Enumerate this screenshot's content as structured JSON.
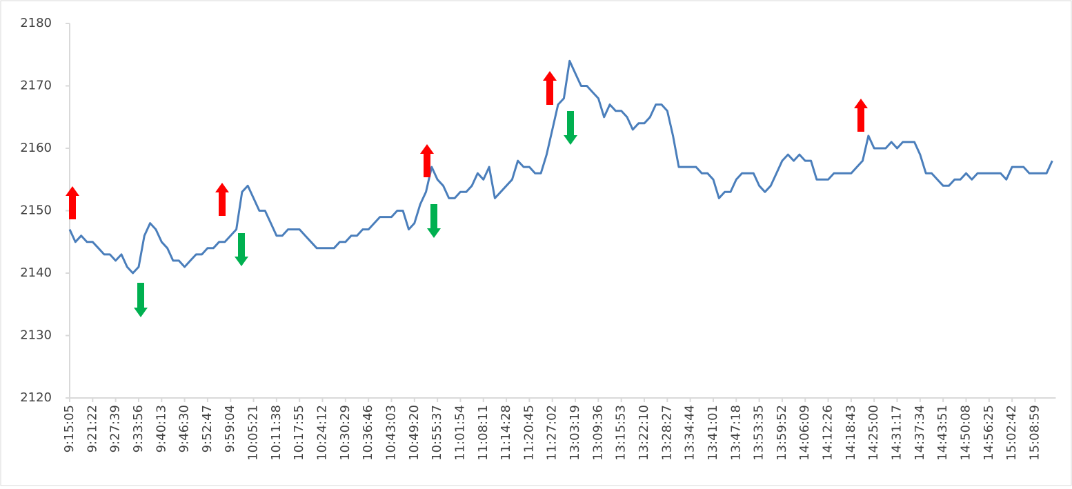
{
  "chart_data": {
    "type": "line",
    "categories": [
      "9:15:05",
      null,
      null,
      null,
      "9:21:22",
      null,
      null,
      null,
      "9:27:39",
      null,
      null,
      null,
      "9:33:56",
      null,
      null,
      null,
      "9:40:13",
      null,
      null,
      null,
      "9:46:30",
      null,
      null,
      null,
      "9:52:47",
      null,
      null,
      null,
      "9:59:04",
      null,
      null,
      null,
      "10:05:21",
      null,
      null,
      null,
      "10:11:38",
      null,
      null,
      null,
      "10:17:55",
      null,
      null,
      null,
      "10:24:12",
      null,
      null,
      null,
      "10:30:29",
      null,
      null,
      null,
      "10:36:46",
      null,
      null,
      null,
      "10:43:03",
      null,
      null,
      null,
      "10:49:20",
      null,
      null,
      null,
      "10:55:37",
      null,
      null,
      null,
      "11:01:54",
      null,
      null,
      null,
      "11:08:11",
      null,
      null,
      null,
      "11:14:28",
      null,
      null,
      null,
      "11:20:45",
      null,
      null,
      null,
      "11:27:02",
      null,
      null,
      null,
      "13:03:19",
      null,
      null,
      null,
      "13:09:36",
      null,
      null,
      null,
      "13:15:53",
      null,
      null,
      null,
      "13:22:10",
      null,
      null,
      null,
      "13:28:27",
      null,
      null,
      null,
      "13:34:44",
      null,
      null,
      null,
      "13:41:01",
      null,
      null,
      null,
      "13:47:18",
      null,
      null,
      null,
      "13:53:35",
      null,
      null,
      null,
      "13:59:52",
      null,
      null,
      null,
      "14:06:09",
      null,
      null,
      null,
      "14:12:26",
      null,
      null,
      null,
      "14:18:43",
      null,
      null,
      null,
      "14:25:00",
      null,
      null,
      null,
      "14:31:17",
      null,
      null,
      null,
      "14:37:34",
      null,
      null,
      null,
      "14:43:51",
      null,
      null,
      null,
      "14:50:08",
      null,
      null,
      null,
      "14:56:25",
      null,
      null,
      null,
      "15:02:42",
      null,
      null,
      null,
      "15:08:59",
      null,
      null,
      null
    ],
    "values": [
      2147,
      2145,
      2146,
      2145,
      2145,
      2144,
      2143,
      2143,
      2142,
      2143,
      2141,
      2140,
      2141,
      2146,
      2148,
      2147,
      2145,
      2144,
      2142,
      2142,
      2141,
      2142,
      2143,
      2143,
      2144,
      2144,
      2145,
      2145,
      2146,
      2147,
      2153,
      2154,
      2152,
      2150,
      2150,
      2148,
      2146,
      2146,
      2147,
      2147,
      2147,
      2146,
      2145,
      2144,
      2144,
      2144,
      2144,
      2145,
      2145,
      2146,
      2146,
      2147,
      2147,
      2148,
      2149,
      2149,
      2149,
      2150,
      2150,
      2147,
      2148,
      2151,
      2153,
      2157,
      2155,
      2154,
      2152,
      2152,
      2153,
      2153,
      2154,
      2156,
      2155,
      2157,
      2152,
      2153,
      2154,
      2155,
      2158,
      2157,
      2157,
      2156,
      2156,
      2159,
      2163,
      2167,
      2168,
      2174,
      2172,
      2170,
      2170,
      2169,
      2168,
      2165,
      2167,
      2166,
      2166,
      2165,
      2163,
      2164,
      2164,
      2165,
      2167,
      2167,
      2166,
      2162,
      2157,
      2157,
      2157,
      2157,
      2156,
      2156,
      2155,
      2152,
      2153,
      2153,
      2155,
      2156,
      2156,
      2156,
      2154,
      2153,
      2154,
      2156,
      2158,
      2159,
      2158,
      2159,
      2158,
      2158,
      2155,
      2155,
      2155,
      2156,
      2156,
      2156,
      2156,
      2157,
      2158,
      2162,
      2160,
      2160,
      2160,
      2161,
      2160,
      2161,
      2161,
      2161,
      2159,
      2156,
      2156,
      2155,
      2154,
      2154,
      2155,
      2155,
      2156,
      2155,
      2156,
      2156,
      2156,
      2156,
      2156,
      2155,
      2157,
      2157,
      2157,
      2156,
      2156,
      2156,
      2156,
      2158
    ],
    "color": "#4a7ebb",
    "ylim": [
      2120,
      2180
    ],
    "yticks": [
      2120,
      2130,
      2140,
      2150,
      2160,
      2170,
      2180
    ]
  }
}
